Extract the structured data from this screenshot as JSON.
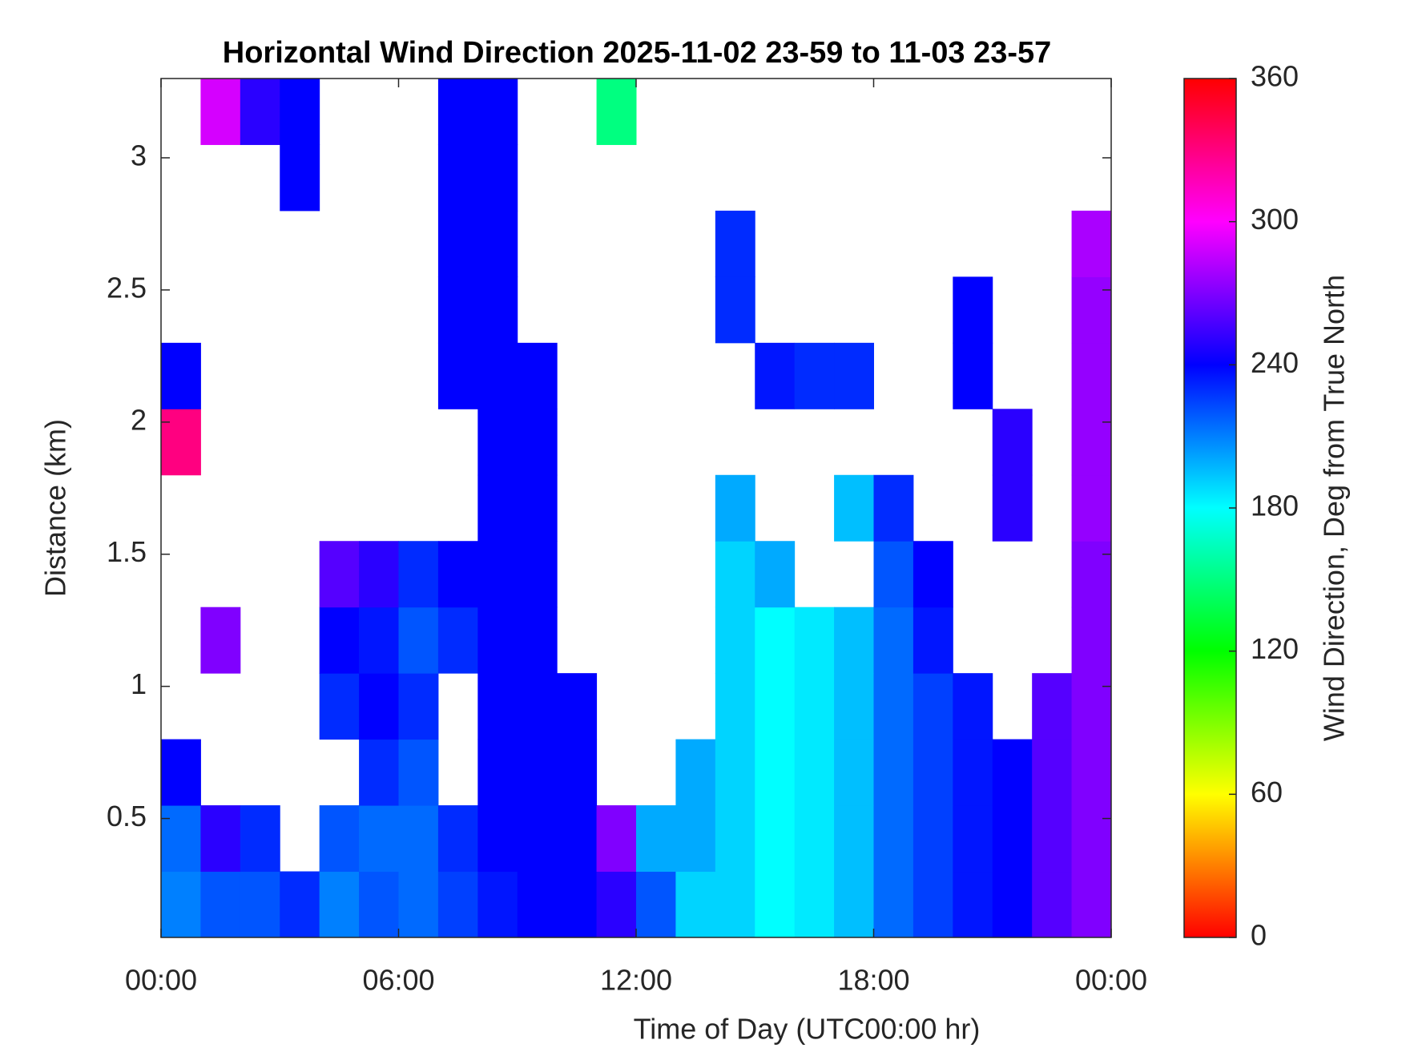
{
  "chart_data": {
    "type": "heatmap",
    "title": "Horizontal Wind Direction 2025-11-02 23-59 to 11-03 23-57",
    "xlabel": "Time of Day (UTC00:00 hr)",
    "ylabel": "Distance (km)",
    "colorbar_label": "Wind Direction, Deg from True North",
    "colormap": "hsv",
    "xlim": [
      0,
      24
    ],
    "ylim": [
      0.05,
      3.3
    ],
    "xticks": [
      {
        "value": 0,
        "label": "00:00"
      },
      {
        "value": 6,
        "label": "06:00"
      },
      {
        "value": 12,
        "label": "12:00"
      },
      {
        "value": 18,
        "label": "18:00"
      },
      {
        "value": 24,
        "label": "00:00"
      }
    ],
    "yticks": [
      0.5,
      1,
      1.5,
      2,
      2.5,
      3
    ],
    "zlim": [
      0,
      360
    ],
    "zticks": [
      0,
      60,
      120,
      180,
      240,
      300,
      360
    ],
    "xbins": [
      0,
      1,
      2,
      3,
      4,
      5,
      6,
      7,
      8,
      9,
      10,
      11,
      12,
      13,
      14,
      15,
      16,
      17,
      18,
      19,
      20,
      21,
      22,
      23,
      24
    ],
    "ybins": [
      0.05,
      0.3,
      0.55,
      0.8,
      1.05,
      1.3,
      1.55,
      1.8,
      2.05,
      2.3,
      2.55,
      2.8,
      3.05,
      3.3
    ],
    "z": [
      [
        210,
        220,
        220,
        230,
        210,
        220,
        215,
        225,
        235,
        240,
        240,
        250,
        220,
        190,
        190,
        180,
        185,
        195,
        215,
        225,
        235,
        240,
        260,
        270
      ],
      [
        215,
        250,
        230,
        null,
        220,
        215,
        215,
        230,
        240,
        240,
        240,
        270,
        200,
        200,
        190,
        180,
        185,
        195,
        215,
        225,
        235,
        240,
        260,
        270
      ],
      [
        240,
        null,
        null,
        null,
        null,
        230,
        220,
        null,
        240,
        240,
        240,
        null,
        null,
        200,
        190,
        180,
        185,
        195,
        215,
        225,
        235,
        240,
        260,
        270
      ],
      [
        null,
        null,
        null,
        null,
        230,
        240,
        230,
        null,
        240,
        240,
        240,
        null,
        null,
        null,
        190,
        180,
        185,
        195,
        215,
        225,
        235,
        null,
        260,
        270
      ],
      [
        null,
        270,
        null,
        null,
        240,
        235,
        220,
        230,
        240,
        240,
        null,
        null,
        null,
        null,
        190,
        180,
        185,
        195,
        215,
        235,
        null,
        null,
        null,
        270
      ],
      [
        null,
        null,
        null,
        null,
        260,
        250,
        230,
        240,
        240,
        240,
        null,
        null,
        null,
        null,
        190,
        200,
        null,
        null,
        220,
        240,
        null,
        null,
        null,
        270
      ],
      [
        null,
        null,
        null,
        null,
        null,
        null,
        null,
        null,
        240,
        240,
        null,
        null,
        null,
        null,
        200,
        null,
        null,
        195,
        230,
        null,
        null,
        250,
        null,
        275
      ],
      [
        330,
        null,
        null,
        null,
        null,
        null,
        null,
        null,
        240,
        240,
        null,
        null,
        null,
        null,
        null,
        null,
        null,
        null,
        null,
        null,
        null,
        250,
        null,
        275
      ],
      [
        240,
        null,
        null,
        null,
        null,
        null,
        null,
        240,
        240,
        240,
        null,
        null,
        null,
        null,
        null,
        235,
        230,
        230,
        null,
        null,
        240,
        null,
        null,
        275
      ],
      [
        null,
        null,
        null,
        null,
        null,
        null,
        null,
        240,
        240,
        null,
        null,
        null,
        null,
        null,
        230,
        null,
        null,
        null,
        null,
        null,
        240,
        null,
        null,
        275
      ],
      [
        null,
        null,
        null,
        null,
        null,
        null,
        null,
        240,
        240,
        null,
        null,
        null,
        null,
        null,
        230,
        null,
        null,
        null,
        null,
        null,
        null,
        null,
        null,
        280
      ],
      [
        null,
        null,
        null,
        240,
        null,
        null,
        null,
        240,
        240,
        null,
        null,
        null,
        null,
        null,
        null,
        null,
        null,
        null,
        null,
        null,
        null,
        null,
        null,
        null
      ],
      [
        null,
        290,
        250,
        240,
        null,
        null,
        null,
        240,
        240,
        null,
        null,
        150,
        null,
        null,
        null,
        null,
        null,
        null,
        null,
        null,
        null,
        null,
        null,
        null
      ]
    ]
  }
}
